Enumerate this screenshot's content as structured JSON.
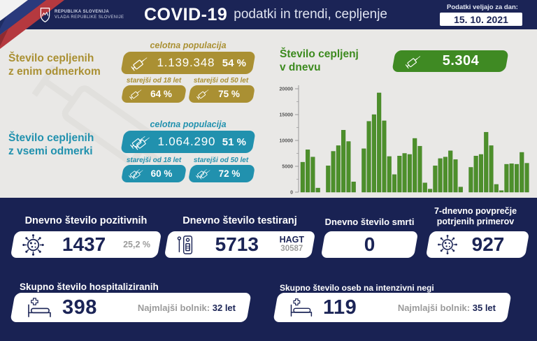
{
  "colors": {
    "header_navy": "#1b2456",
    "bottom_navy": "#192253",
    "background_gray": "#e9e8e6",
    "gold": "#aa9033",
    "teal": "#2191ae",
    "green": "#3f8a23",
    "value_navy": "#1b2456",
    "muted_gray": "#9b9b9b"
  },
  "header": {
    "gov_line1": "REPUBLIKA SLOVENIJA",
    "gov_line2": "VLADA REPUBLIKE SLOVENIJE",
    "title_main": "COVID-19",
    "title_sub": "podatki in trendi, cepljenje",
    "date_label": "Podatki veljajo za dan:",
    "date_value": "15. 10. 2021"
  },
  "vaccination": {
    "first_dose": {
      "label_line1": "Število cepljenih",
      "label_line2": "z enim odmerkom",
      "population_label": "celotna populacija",
      "count": "1.139.348",
      "percent": "54 %",
      "over18_label": "starejši od 18 let",
      "over18_percent": "64 %",
      "over50_label": "starejši od 50 let",
      "over50_percent": "75 %"
    },
    "all_doses": {
      "label_line1": "Število cepljenih",
      "label_line2": "z vsemi odmerki",
      "population_label": "celotna populacija",
      "count": "1.064.290",
      "percent": "51 %",
      "over18_label": "starejši od 18 let",
      "over18_percent": "60 %",
      "over50_label": "starejši od 50 let",
      "over50_percent": "72 %"
    },
    "daily": {
      "label_line1": "Število cepljenj",
      "label_line2": "v dnevu",
      "value": "5.304"
    }
  },
  "chart_data": {
    "type": "bar",
    "title": "Število cepljenj v dnevu",
    "xlabel": "",
    "ylabel": "",
    "ylim": [
      0,
      20000
    ],
    "yticks": [
      0,
      5000,
      10000,
      15000,
      20000
    ],
    "grid": false,
    "legend": false,
    "bar_color": "#4d8f2b",
    "x_tick_labels_visible": false,
    "values": [
      5800,
      8200,
      6800,
      800,
      null,
      5100,
      7900,
      9000,
      12000,
      9800,
      2000,
      null,
      8400,
      13700,
      15000,
      19200,
      13800,
      6900,
      3400,
      7000,
      7500,
      7300,
      10400,
      8900,
      1800,
      600,
      5100,
      6500,
      6800,
      8000,
      6300,
      1000,
      null,
      4800,
      7000,
      7300,
      11600,
      9000,
      1500,
      300,
      5400,
      5500,
      5400,
      7700,
      5600
    ]
  },
  "stats": [
    {
      "title": "Dnevno število pozitivnih",
      "icon": "virus-icon",
      "value": "1437",
      "extra": "25,2 %"
    },
    {
      "title": "Dnevno število testiranj",
      "icon": "test-kit-icon",
      "value": "5713",
      "extra_bold": "HAGT",
      "extra_sub": "30587"
    },
    {
      "title": "Dnevno število smrti",
      "value": "0"
    },
    {
      "title": "7-dnevno povprečje",
      "title2": "potrjenih primerov",
      "icon": "virus-icon",
      "value": "927"
    }
  ],
  "hospital": [
    {
      "title": "Skupno število hospitaliziranih",
      "icon": "hospital-bed-icon",
      "value": "398",
      "note_label": "Najmlajši bolnik:",
      "note_value": "32 let"
    },
    {
      "title": "Skupno število oseb na intenzivni negi",
      "icon": "hospital-bed-icon",
      "value": "119",
      "note_label": "Najmlajši bolnik:",
      "note_value": "35 let"
    }
  ]
}
